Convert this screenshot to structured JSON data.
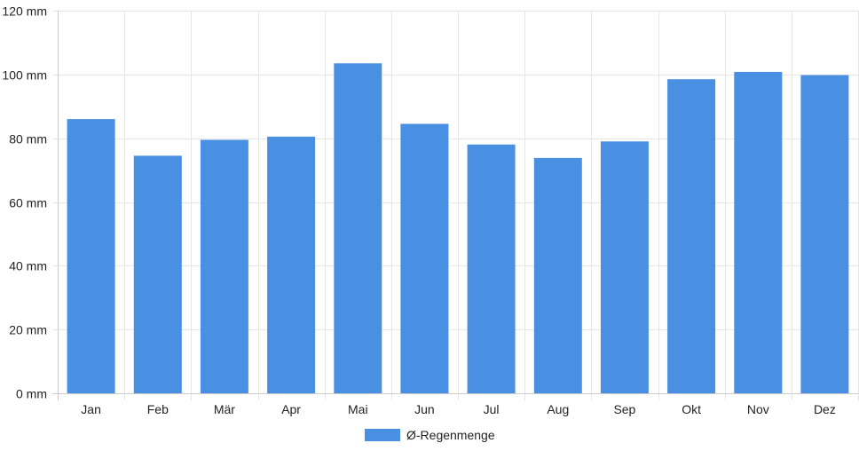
{
  "chart_data": {
    "type": "bar",
    "categories": [
      "Jan",
      "Feb",
      "Mär",
      "Apr",
      "Mai",
      "Jun",
      "Jul",
      "Aug",
      "Sep",
      "Okt",
      "Nov",
      "Dez"
    ],
    "series": [
      {
        "name": "Ø-Regenmenge",
        "color": "#4a90e2",
        "values": [
          86,
          74.5,
          79.5,
          80.5,
          103.5,
          84.5,
          78,
          73.8,
          79,
          98.5,
          100.8,
          99.8
        ]
      }
    ],
    "ylim": [
      0,
      120
    ],
    "yticks": [
      0,
      20,
      40,
      60,
      80,
      100,
      120
    ],
    "ytick_labels": [
      "0 mm",
      "20 mm",
      "40 mm",
      "60 mm",
      "80 mm",
      "100 mm",
      "120 mm"
    ],
    "grid": true,
    "legend_position": "bottom"
  }
}
